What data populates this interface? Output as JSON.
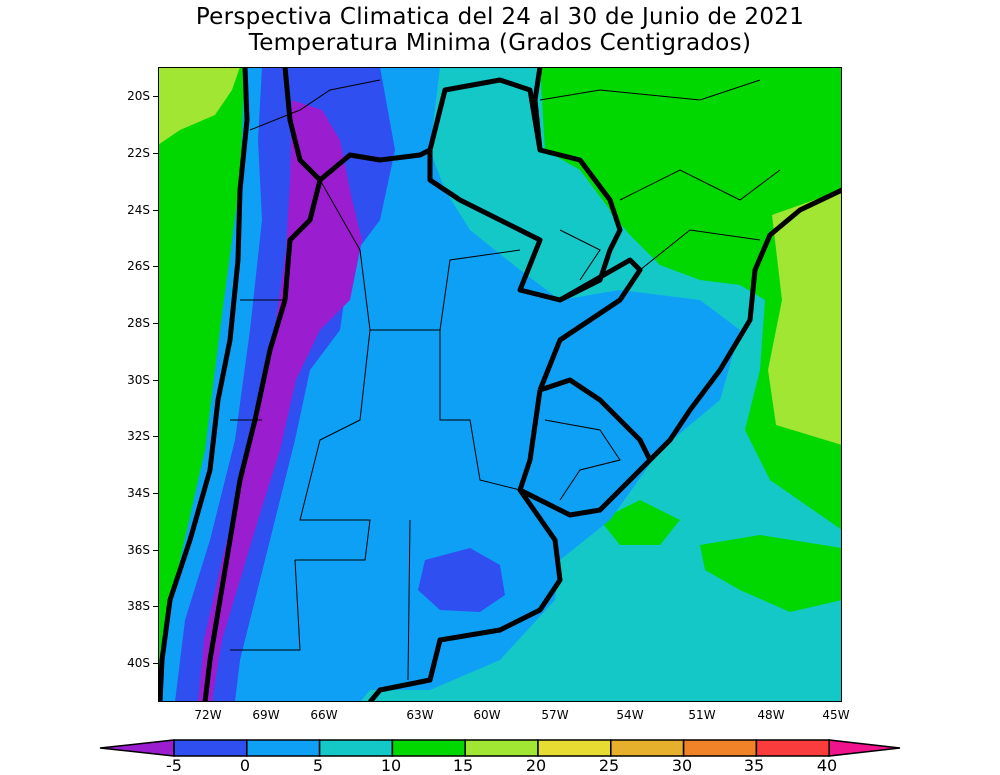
{
  "title": {
    "line1": "Perspectiva Climatica del 24 al 30 de Junio de 2021",
    "line2": "Temperatura Minima (Grados Centigrados)"
  },
  "latitude_labels": [
    "20S",
    "22S",
    "24S",
    "26S",
    "28S",
    "30S",
    "32S",
    "34S",
    "36S",
    "38S",
    "40S"
  ],
  "longitude_labels": [
    "72W",
    "69W",
    "66W",
    "63W",
    "60W",
    "57W",
    "54W",
    "51W",
    "48W",
    "45W"
  ],
  "colorbar": {
    "ticks": [
      "-5",
      "0",
      "5",
      "10",
      "15",
      "20",
      "25",
      "30",
      "35",
      "40"
    ],
    "colors": {
      "below_-5": "#9a1ecf",
      "-5_0": "#2f4ff0",
      "0_5": "#0ea0f5",
      "5_10": "#14c8c8",
      "10_15": "#00d800",
      "15_20": "#a0e632",
      "20_25": "#e6dc32",
      "25_30": "#e6b02d",
      "30_35": "#f08228",
      "35_40": "#fa3c3c",
      "above_40": "#f0148c"
    }
  }
}
